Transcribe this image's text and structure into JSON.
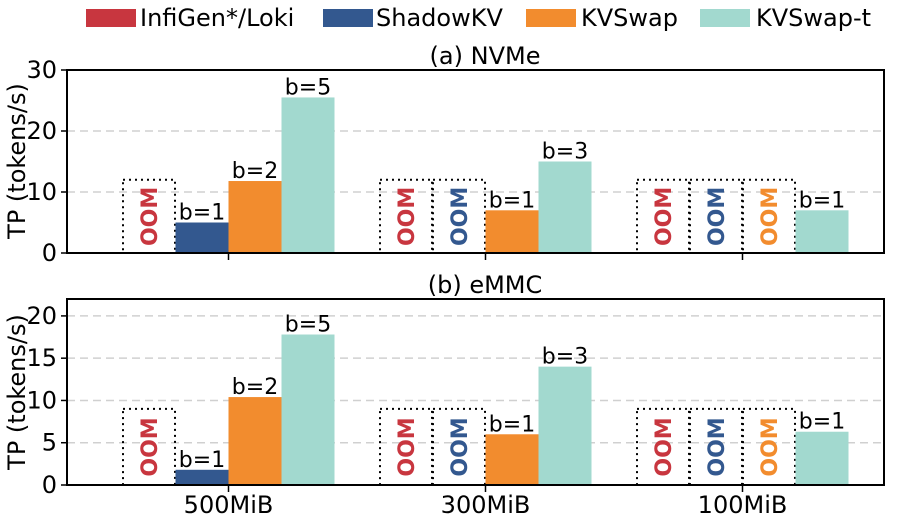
{
  "chart_data": {
    "type": "bar",
    "legend": {
      "placement": "top",
      "entries": [
        {
          "name": "InfiGen*/Loki",
          "color": "#c8363f"
        },
        {
          "name": "ShadowKV",
          "color": "#33588f"
        },
        {
          "name": "KVSwap",
          "color": "#f28c2e"
        },
        {
          "name": "KVSwap-t",
          "color": "#a2d9cf"
        }
      ]
    },
    "categories": [
      "500MiB",
      "300MiB",
      "100MiB"
    ],
    "oom_label": "OOM",
    "panels": [
      {
        "title": "(a) NVMe",
        "ylabel": "TP (tokens/s)",
        "ylim": [
          0,
          30
        ],
        "yticks": [
          0,
          10,
          20,
          30
        ],
        "oom_box_height": 12,
        "grid": true,
        "series": [
          {
            "name": "InfiGen*/Loki",
            "values": [
              null,
              null,
              null
            ],
            "labels": [
              "",
              "",
              ""
            ]
          },
          {
            "name": "ShadowKV",
            "values": [
              5,
              null,
              null
            ],
            "labels": [
              "b=1",
              "",
              ""
            ]
          },
          {
            "name": "KVSwap",
            "values": [
              11.8,
              7,
              null
            ],
            "labels": [
              "b=2",
              "b=1",
              ""
            ]
          },
          {
            "name": "KVSwap-t",
            "values": [
              25.5,
              15,
              7
            ],
            "labels": [
              "b=5",
              "b=3",
              "b=1"
            ]
          }
        ]
      },
      {
        "title": "(b) eMMC",
        "ylabel": "TP (tokens/s)",
        "ylim": [
          0,
          22
        ],
        "yticks": [
          0,
          5,
          10,
          15,
          20
        ],
        "oom_box_height": 9,
        "grid": true,
        "series": [
          {
            "name": "InfiGen*/Loki",
            "values": [
              null,
              null,
              null
            ],
            "labels": [
              "",
              "",
              ""
            ]
          },
          {
            "name": "ShadowKV",
            "values": [
              1.8,
              null,
              null
            ],
            "labels": [
              "b=1",
              "",
              ""
            ]
          },
          {
            "name": "KVSwap",
            "values": [
              10.4,
              6,
              null
            ],
            "labels": [
              "b=2",
              "b=1",
              ""
            ]
          },
          {
            "name": "KVSwap-t",
            "values": [
              17.8,
              14,
              6.3
            ],
            "labels": [
              "b=5",
              "b=3",
              "b=1"
            ]
          }
        ]
      }
    ]
  }
}
